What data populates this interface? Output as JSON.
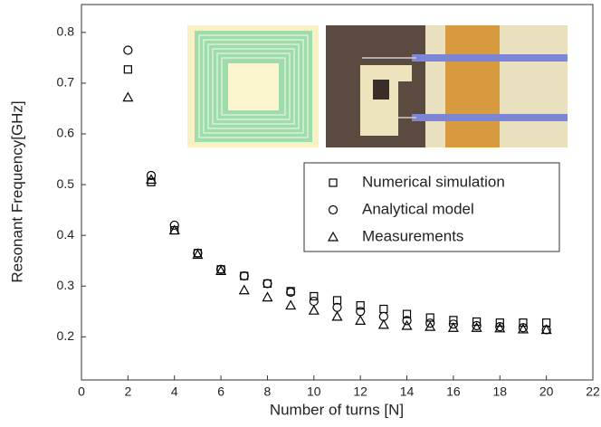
{
  "chart_data": {
    "type": "scatter",
    "xlabel": "Number of turns [N]",
    "ylabel": "Resonant Frequency[GHz]",
    "x": [
      2,
      3,
      4,
      5,
      6,
      7,
      8,
      9,
      10,
      11,
      12,
      13,
      14,
      15,
      16,
      17,
      18,
      19,
      20
    ],
    "series": [
      {
        "name": "Numerical simulation",
        "color": "#000000",
        "marker": "square",
        "values": [
          0.727,
          0.505,
          0.41,
          0.365,
          0.333,
          0.32,
          0.305,
          0.29,
          0.28,
          0.272,
          0.262,
          0.255,
          0.245,
          0.238,
          0.233,
          0.23,
          0.228,
          0.228,
          0.228
        ]
      },
      {
        "name": "Analytical model",
        "color": "#000000",
        "marker": "circle",
        "values": [
          0.765,
          0.518,
          0.42,
          0.365,
          0.333,
          0.32,
          0.305,
          0.288,
          0.27,
          0.258,
          0.25,
          0.24,
          0.232,
          0.227,
          0.225,
          0.222,
          0.22,
          0.218,
          0.214
        ]
      },
      {
        "name": "Measurements",
        "color": "#000000",
        "marker": "triangle",
        "values": [
          0.672,
          0.51,
          0.41,
          0.362,
          0.33,
          0.292,
          0.278,
          0.262,
          0.252,
          0.24,
          0.232,
          0.224,
          0.222,
          0.22,
          0.218,
          0.218,
          0.217,
          0.215,
          0.214
        ]
      }
    ],
    "xlim": [
      0,
      22
    ],
    "xticks": [
      0,
      2,
      4,
      6,
      8,
      10,
      12,
      14,
      16,
      18,
      20,
      22
    ],
    "ylim": [
      0.115,
      0.855
    ],
    "yticks": [
      0.2,
      0.3,
      0.4,
      0.5,
      0.6,
      0.7,
      0.8
    ],
    "legend": "right",
    "grid": false
  }
}
